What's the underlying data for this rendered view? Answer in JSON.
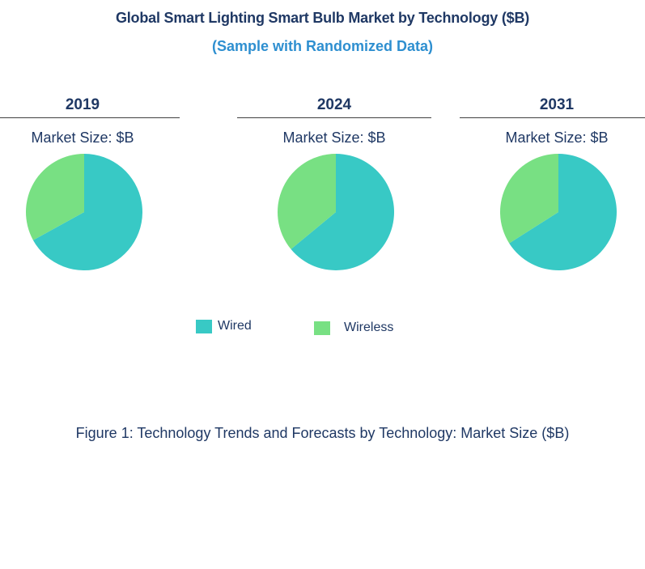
{
  "title": "Global Smart Lighting Smart Bulb Market by Technology ($B)",
  "subtitle": "(Sample with Randomized Data)",
  "caption": "Figure 1: Technology Trends and Forecasts by Technology: Market Size ($B)",
  "colors": {
    "Wired": "#38c9c5",
    "Wireless": "#78e083"
  },
  "legend": [
    {
      "name": "Wired",
      "color": "#38c9c5"
    },
    {
      "name": "Wireless",
      "color": "#78e083"
    }
  ],
  "chart_data": [
    {
      "type": "pie",
      "title": "2019",
      "subtitle": "Market Size: $B",
      "slices": [
        {
          "label": "Wired",
          "value": 67
        },
        {
          "label": "Wireless",
          "value": 33
        }
      ]
    },
    {
      "type": "pie",
      "title": "2024",
      "subtitle": "Market Size: $B",
      "slices": [
        {
          "label": "Wired",
          "value": 64
        },
        {
          "label": "Wireless",
          "value": 36
        }
      ]
    },
    {
      "type": "pie",
      "title": "2031",
      "subtitle": "Market Size: $B",
      "slices": [
        {
          "label": "Wired",
          "value": 66
        },
        {
          "label": "Wireless",
          "value": 34
        }
      ]
    }
  ]
}
